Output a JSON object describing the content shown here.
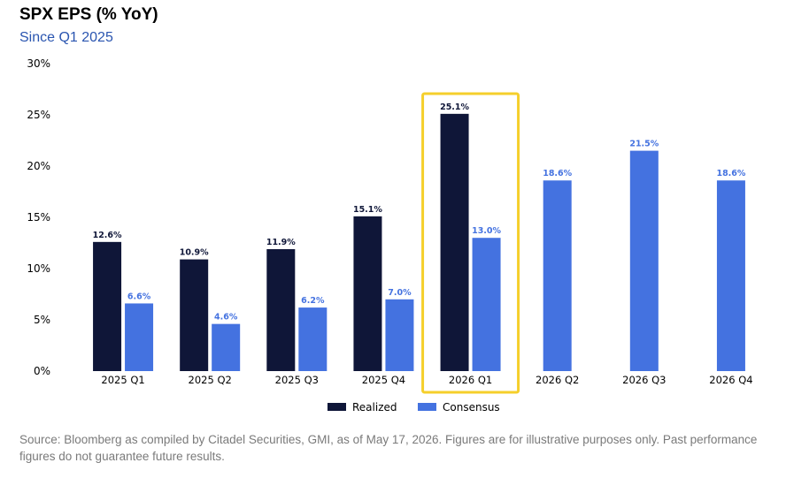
{
  "chart_data": {
    "type": "bar",
    "title": "SPX EPS (% YoY)",
    "subtitle": "Since Q1 2025",
    "categories": [
      "2025 Q1",
      "2025 Q2",
      "2025 Q3",
      "2025 Q4",
      "2026 Q1",
      "2026 Q2",
      "2026 Q3",
      "2026 Q4"
    ],
    "series": [
      {
        "name": "Realized",
        "color": "#0f1638",
        "values": [
          12.6,
          10.9,
          11.9,
          15.1,
          25.1,
          null,
          null,
          null
        ],
        "labels": [
          "12.6%",
          "10.9%",
          "11.9%",
          "15.1%",
          "25.1%",
          null,
          null,
          null
        ]
      },
      {
        "name": "Consensus",
        "color": "#4472e0",
        "values": [
          6.6,
          4.6,
          6.2,
          7.0,
          13.0,
          18.6,
          21.5,
          18.6
        ],
        "labels": [
          "6.6%",
          "4.6%",
          "6.2%",
          "7.0%",
          "13.0%",
          "18.6%",
          "21.5%",
          "18.6%"
        ]
      }
    ],
    "ylim": [
      0,
      30
    ],
    "yticks": [
      0,
      5,
      10,
      15,
      20,
      25,
      30
    ],
    "ytick_labels": [
      "0%",
      "5%",
      "10%",
      "15%",
      "20%",
      "25%",
      "30%"
    ],
    "xlabel": "",
    "ylabel": "",
    "grid": false,
    "legend_position": "bottom-center",
    "highlight": {
      "category": "2026 Q1",
      "color": "#f5cf2b"
    }
  },
  "source_note": "Source: Bloomberg as compiled by Citadel Securities, GMI, as of May 17, 2026. Figures are for illustrative purposes only. Past performance figures do not guarantee future results."
}
